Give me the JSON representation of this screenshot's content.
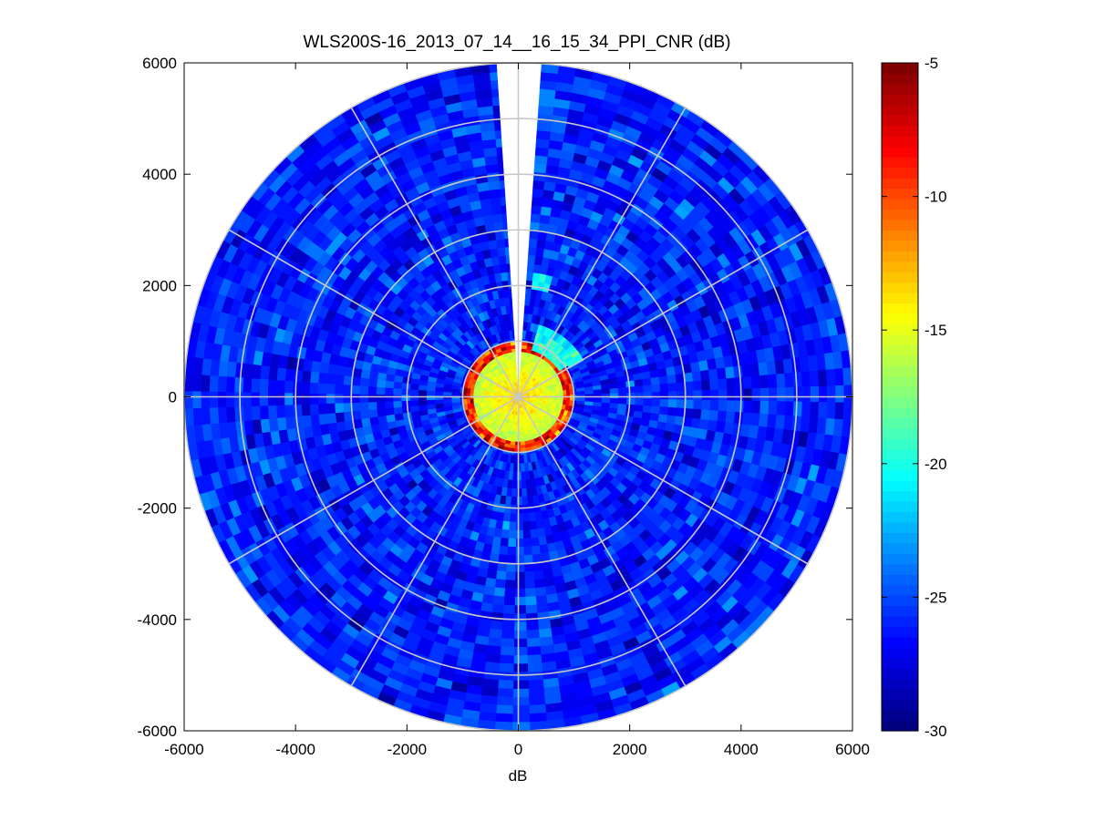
{
  "chart_data": {
    "type": "heatmap",
    "subtype": "polar-ppi",
    "title": "WLS200S-16_2013_07_14__16_15_34_PPI_CNR (dB)",
    "xlabel": "dB",
    "ylabel": "",
    "xlim": [
      -6000,
      6000
    ],
    "ylim": [
      -6000,
      6000
    ],
    "xticks": [
      -6000,
      -4000,
      -2000,
      0,
      2000,
      4000,
      6000
    ],
    "yticks": [
      -6000,
      -4000,
      -2000,
      0,
      2000,
      4000,
      6000
    ],
    "xtick_labels": [
      "-6000",
      "-4000",
      "-2000",
      "0",
      "2000",
      "4000",
      "6000"
    ],
    "ytick_labels": [
      "-6000",
      "-4000",
      "-2000",
      "0",
      "2000",
      "4000",
      "6000"
    ],
    "grid": "polar",
    "grid_range_rings": [
      1000,
      2000,
      3000,
      4000,
      5000,
      6000
    ],
    "grid_spokes_deg": [
      0,
      30,
      60,
      90,
      120,
      150,
      180,
      210,
      240,
      270,
      300,
      330
    ],
    "max_range": 6000,
    "missing_sector_deg": [
      -4,
      4
    ],
    "value_unit": "dB",
    "colormap": "jet",
    "colorbar": {
      "position": "right",
      "clim": [
        -30,
        -5
      ],
      "ticks": [
        -5,
        -10,
        -15,
        -20,
        -25,
        -30
      ],
      "tick_labels": [
        "-5",
        "-10",
        "-15",
        "-20",
        "-25",
        "-30"
      ],
      "levels": 64
    },
    "field": {
      "background_level": -26,
      "background_noise": 1.5,
      "near_field": {
        "radius": 800,
        "center_value": -13,
        "edge_value": -16
      },
      "edge_ring": {
        "radius_min": 780,
        "radius_max": 980,
        "value": -9
      },
      "enhanced_arc": {
        "azimuth_deg": [
          15,
          60
        ],
        "radius_min": 900,
        "radius_max": 1300,
        "value": -20
      },
      "enhanced_spot": {
        "azimuth_deg": [
          8,
          16
        ],
        "radius_min": 2000,
        "radius_max": 2300,
        "value": -20.5
      }
    }
  }
}
